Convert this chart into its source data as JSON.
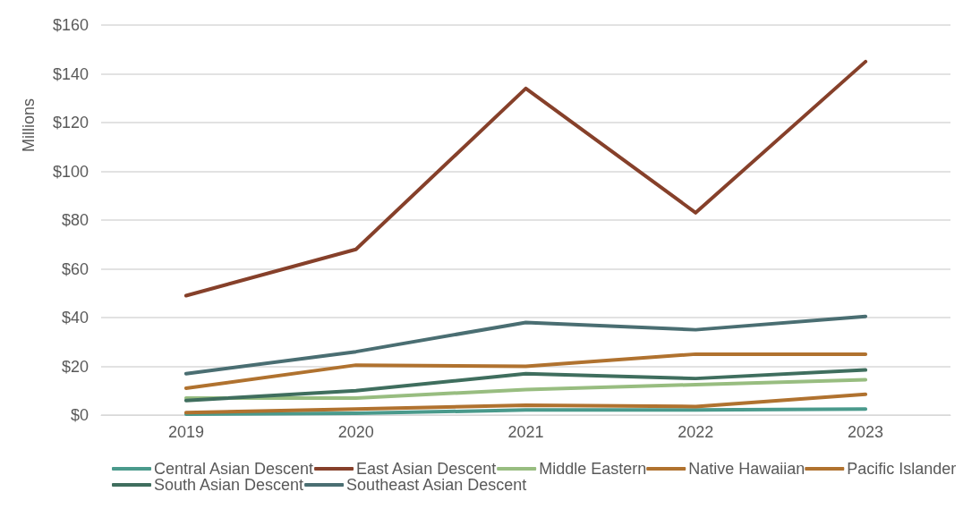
{
  "chart_data": {
    "type": "line",
    "ylabel": "Millions",
    "categories": [
      "2019",
      "2020",
      "2021",
      "2022",
      "2023"
    ],
    "ylim": [
      0,
      160
    ],
    "yticks": [
      {
        "value": 0,
        "label": "$0"
      },
      {
        "value": 20,
        "label": "$20"
      },
      {
        "value": 40,
        "label": "$40"
      },
      {
        "value": 60,
        "label": "$60"
      },
      {
        "value": 80,
        "label": "$80"
      },
      {
        "value": 100,
        "label": "$100"
      },
      {
        "value": 120,
        "label": "$120"
      },
      {
        "value": 140,
        "label": "$140"
      },
      {
        "value": 160,
        "label": "$160"
      }
    ],
    "grid": "y",
    "legend": "bottom",
    "marker": "none",
    "line_style": "solid",
    "series": [
      {
        "name": "Central Asian Descent",
        "color": "#4a9a8c",
        "values": [
          0.4,
          0.7,
          2.1,
          2.1,
          2.5
        ]
      },
      {
        "name": "East Asian Descent",
        "color": "#86402a",
        "values": [
          49,
          68,
          134,
          83,
          145
        ]
      },
      {
        "name": "Middle Eastern",
        "color": "#98bd80",
        "values": [
          7,
          7,
          10.5,
          12.5,
          14.5
        ]
      },
      {
        "name": "Native Hawaiian",
        "color": "#b0722f",
        "values": [
          1,
          2.5,
          4,
          3.5,
          8.5
        ]
      },
      {
        "name": "Pacific Islander",
        "color": "#b0722f",
        "values": [
          11,
          20.5,
          20,
          25,
          25
        ]
      },
      {
        "name": "South Asian Descent",
        "color": "#3f6e5e",
        "values": [
          6,
          10,
          17,
          15,
          18.5
        ]
      },
      {
        "name": "Southeast Asian Descent",
        "color": "#4a6e72",
        "values": [
          17,
          26,
          38,
          35,
          40.5
        ]
      }
    ]
  }
}
